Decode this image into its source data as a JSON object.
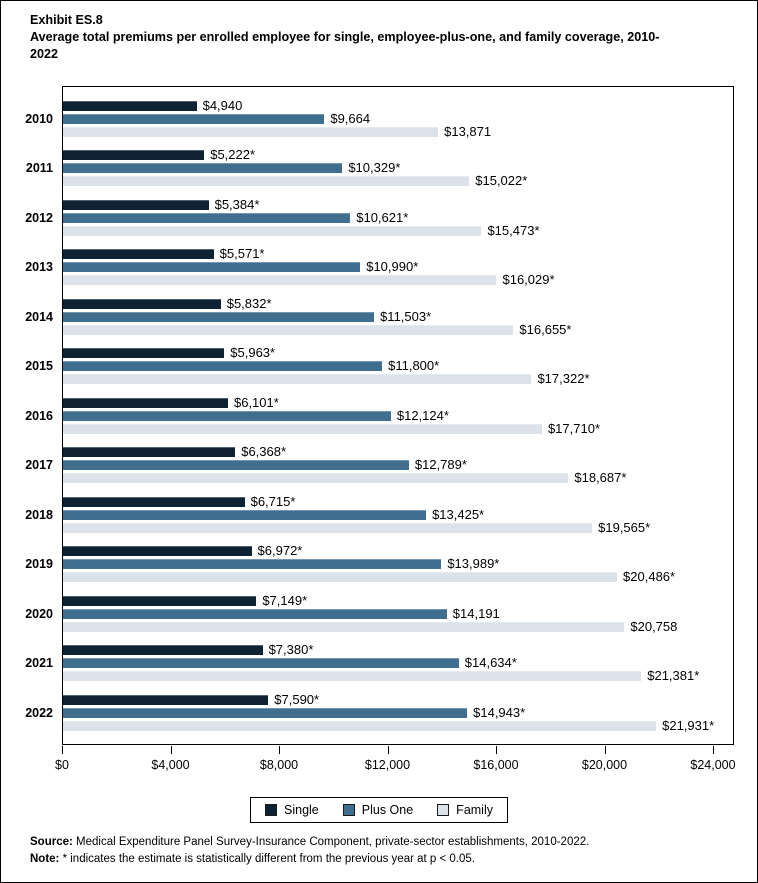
{
  "title": {
    "exhibit": "Exhibit ES.8",
    "text": "Average total premiums per enrolled employee for single, employee-plus-one, and family coverage, 2010-2022"
  },
  "chart_data": {
    "type": "bar",
    "orientation": "horizontal",
    "title": "Average total premiums per enrolled employee for single, employee-plus-one, and family coverage, 2010-2022",
    "categories": [
      "2010",
      "2011",
      "2012",
      "2013",
      "2014",
      "2015",
      "2016",
      "2017",
      "2018",
      "2019",
      "2020",
      "2021",
      "2022"
    ],
    "series": [
      {
        "name": "Single",
        "color": "#0e2233",
        "values": [
          4940,
          5222,
          5384,
          5571,
          5832,
          5963,
          6101,
          6368,
          6715,
          6972,
          7149,
          7380,
          7590
        ],
        "labels": [
          "$4,940",
          "$5,222*",
          "$5,384*",
          "$5,571*",
          "$5,832*",
          "$5,963*",
          "$6,101*",
          "$6,368*",
          "$6,715*",
          "$6,972*",
          "$7,149*",
          "$7,380*",
          "$7,590*"
        ]
      },
      {
        "name": "Plus One",
        "color": "#3f6e8f",
        "values": [
          9664,
          10329,
          10621,
          10990,
          11503,
          11800,
          12124,
          12789,
          13425,
          13989,
          14191,
          14634,
          14943
        ],
        "labels": [
          "$9,664",
          "$10,329*",
          "$10,621*",
          "$10,990*",
          "$11,503*",
          "$11,800*",
          "$12,124*",
          "$12,789*",
          "$13,425*",
          "$13,989*",
          "$14,191",
          "$14,634*",
          "$14,943*"
        ]
      },
      {
        "name": "Family",
        "color": "#dbe2ea",
        "values": [
          13871,
          15022,
          15473,
          16029,
          16655,
          17322,
          17710,
          18687,
          19565,
          20486,
          20758,
          21381,
          21931
        ],
        "labels": [
          "$13,871",
          "$15,022*",
          "$15,473*",
          "$16,029*",
          "$16,655*",
          "$17,322*",
          "$17,710*",
          "$18,687*",
          "$19,565*",
          "$20,486*",
          "$20,758",
          "$21,381*",
          "$21,931*"
        ]
      }
    ],
    "x_axis": {
      "ticks": [
        {
          "value": 0,
          "label": "$0"
        },
        {
          "value": 4000,
          "label": "$4,000"
        },
        {
          "value": 8000,
          "label": "$8,000"
        },
        {
          "value": 12000,
          "label": "$12,000"
        },
        {
          "value": 16000,
          "label": "$16,000"
        },
        {
          "value": 20000,
          "label": "$20,000"
        },
        {
          "value": 24000,
          "label": "$24,000"
        }
      ],
      "xlim": [
        0,
        24000
      ]
    },
    "legend": {
      "position": "bottom",
      "entries": [
        "Single",
        "Plus One",
        "Family"
      ]
    },
    "grid": false
  },
  "footer": {
    "source_label": "Source:",
    "source_text": " Medical Expenditure Panel Survey-Insurance Component, private-sector establishments, 2010-2022.",
    "note_label": "Note:",
    "note_text": " * indicates the estimate is statistically different from the previous year at p < 0.05."
  }
}
